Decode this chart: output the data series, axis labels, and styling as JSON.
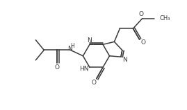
{
  "bg_color": "#ffffff",
  "line_color": "#3a3a3a",
  "line_width": 1.1,
  "font_size": 6.5,
  "figsize": [
    2.69,
    1.59
  ],
  "dpi": 100,
  "xlim": [
    0,
    10
  ],
  "ylim": [
    0,
    5.9
  ]
}
